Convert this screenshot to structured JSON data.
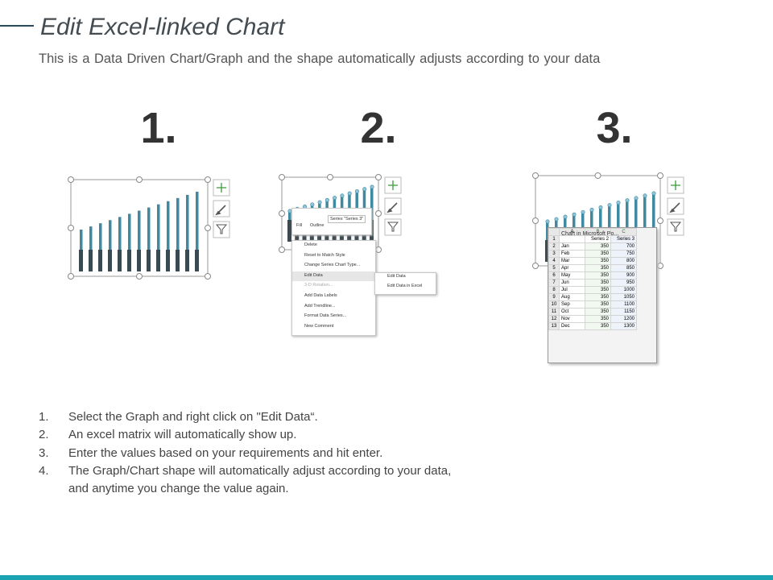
{
  "header": {
    "title": "Edit Excel-linked Chart",
    "subtitle": "This is a Data Driven Chart/Graph and the shape automatically adjusts according to your data"
  },
  "steps": [
    "1.",
    "2.",
    "3."
  ],
  "menu": {
    "toolbar": [
      "Fill",
      "Outline",
      "Series \"Series 3\""
    ],
    "items": [
      "Delete",
      "Reset to Match Style",
      "Change Series Chart Type...",
      "Edit Data",
      "3-D Rotation...",
      "Add Data Labels",
      "Add Trendline...",
      "Format Data Series...",
      "New Comment"
    ],
    "submenu": [
      "Edit Data",
      "Edit Data in Excel"
    ]
  },
  "sheet": {
    "title": "Chart in Microsoft Po...",
    "columns": [
      "A",
      "B",
      "C"
    ],
    "row_labels": [
      "1",
      "2",
      "3",
      "4",
      "5",
      "6",
      "7",
      "8",
      "9",
      "10",
      "11",
      "12",
      "13"
    ],
    "rows": [
      [
        "",
        "Series 2",
        "Series 3"
      ],
      [
        "Jan",
        350,
        700
      ],
      [
        "Feb",
        350,
        750
      ],
      [
        "Mar",
        350,
        800
      ],
      [
        "Apr",
        350,
        850
      ],
      [
        "May",
        350,
        900
      ],
      [
        "Jun",
        350,
        950
      ],
      [
        "Jul",
        350,
        1000
      ],
      [
        "Aug",
        350,
        1050
      ],
      [
        "Sep",
        350,
        1100
      ],
      [
        "Oct",
        350,
        1150
      ],
      [
        "Nov",
        350,
        1200
      ],
      [
        "Dec",
        350,
        1300
      ]
    ]
  },
  "instructions": [
    {
      "number": "1.",
      "lines": [
        "Select the Graph and right click on \"Edit Data“."
      ]
    },
    {
      "number": "2.",
      "lines": [
        "An excel matrix will automatically show up."
      ]
    },
    {
      "number": "3.",
      "lines": [
        "Enter the values based on your requirements and hit enter."
      ]
    },
    {
      "number": "4.",
      "lines": [
        "The Graph/Chart shape will automatically adjust according to your data,",
        "and anytime you change the value again."
      ]
    }
  ]
}
